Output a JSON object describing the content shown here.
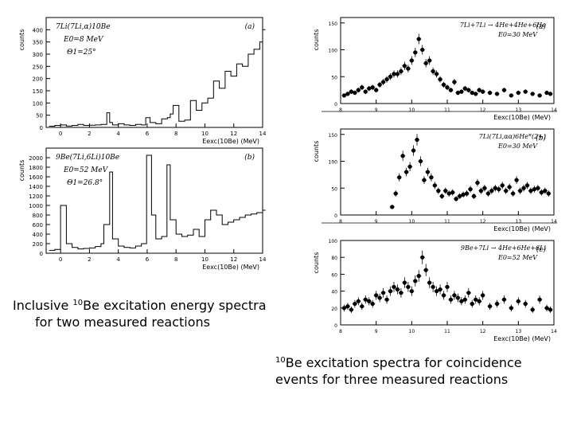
{
  "captions": {
    "left": {
      "sup": "10",
      "line1": "Be excitation energy spectra",
      "prefix": "Inclusive ",
      "line2": "for two measured reactions"
    },
    "right": {
      "sup": "10",
      "line1": "Be excitation spectra for coincidence",
      "line2": "events for three measured reactions"
    }
  },
  "colors": {
    "ink": "#000000",
    "background": "#ffffff"
  },
  "chart_data": [
    {
      "id": "left-a",
      "type": "histogram",
      "panel_label": "(a)",
      "reaction": "7Li(7Li,α)10Be",
      "energy": "E0=8 MeV",
      "angle": "Θ1=25°",
      "ylabel": "counts",
      "xlabel": "Eexc(10Be) (MeV)",
      "xlim": [
        -1,
        14
      ],
      "ylim": [
        0,
        450
      ],
      "yticks": [
        0,
        50,
        100,
        150,
        200,
        250,
        300,
        350,
        400
      ],
      "xticks": [
        0,
        2,
        4,
        6,
        8,
        10,
        12,
        14
      ],
      "x": [
        -0.8,
        -0.4,
        0,
        0.4,
        0.8,
        1.2,
        1.6,
        2,
        2.4,
        2.8,
        3.2,
        3.4,
        3.6,
        4,
        4.4,
        4.8,
        5.2,
        5.6,
        5.9,
        6.2,
        6.6,
        7,
        7.4,
        7.6,
        7.8,
        8.2,
        8.6,
        9,
        9.4,
        9.8,
        10.2,
        10.6,
        11,
        11.4,
        11.8,
        12.2,
        12.6,
        13,
        13.4,
        13.8,
        14
      ],
      "values": [
        5,
        8,
        10,
        6,
        8,
        12,
        8,
        9,
        10,
        12,
        60,
        20,
        10,
        15,
        10,
        8,
        12,
        10,
        40,
        20,
        15,
        35,
        40,
        55,
        90,
        25,
        30,
        110,
        70,
        100,
        120,
        190,
        160,
        230,
        210,
        260,
        250,
        300,
        320,
        350,
        400
      ]
    },
    {
      "id": "left-b",
      "type": "histogram",
      "panel_label": "(b)",
      "reaction": "9Be(7Li,6Li)10Be",
      "energy": "E0=52 MeV",
      "angle": "Θ1=26.8°",
      "ylabel": "counts",
      "xlabel": "Eexc(10Be) (MeV)",
      "xlim": [
        -1,
        14
      ],
      "ylim": [
        0,
        2200
      ],
      "yticks": [
        0,
        200,
        400,
        600,
        800,
        1000,
        1200,
        1400,
        1600,
        1800,
        2000
      ],
      "xticks": [
        0,
        2,
        4,
        6,
        8,
        10,
        12,
        14
      ],
      "x": [
        -0.8,
        -0.4,
        0,
        0.4,
        0.8,
        1.2,
        1.6,
        2,
        2.4,
        2.8,
        3.0,
        3.4,
        3.6,
        4,
        4.4,
        4.8,
        5.2,
        5.6,
        5.96,
        6.3,
        6.6,
        7,
        7.37,
        7.6,
        8,
        8.4,
        8.8,
        9.2,
        9.6,
        10,
        10.4,
        10.8,
        11.2,
        11.6,
        12,
        12.4,
        12.8,
        13.2,
        13.6,
        14
      ],
      "values": [
        60,
        80,
        1000,
        200,
        120,
        90,
        100,
        110,
        140,
        200,
        600,
        1700,
        300,
        150,
        120,
        110,
        150,
        200,
        2050,
        800,
        300,
        350,
        1850,
        700,
        400,
        350,
        380,
        500,
        350,
        700,
        900,
        800,
        600,
        650,
        700,
        750,
        800,
        820,
        850,
        900
      ]
    },
    {
      "id": "right-a",
      "type": "scatter-errorbar",
      "panel_label": "(a)",
      "reaction": "7Li+7Li → 4He+4He+6He",
      "energy": "E0=30 MeV",
      "ylabel": "counts",
      "xlabel": "Eexc(10Be) (MeV)",
      "xlim": [
        8,
        14
      ],
      "ylim": [
        0,
        160
      ],
      "yticks": [
        0,
        50,
        100,
        150
      ],
      "xticks": [
        8,
        9,
        10,
        11,
        12,
        13,
        14
      ],
      "x": [
        8.1,
        8.2,
        8.3,
        8.4,
        8.5,
        8.6,
        8.7,
        8.8,
        8.9,
        9.0,
        9.1,
        9.2,
        9.3,
        9.4,
        9.5,
        9.6,
        9.7,
        9.8,
        9.9,
        10.0,
        10.1,
        10.2,
        10.3,
        10.4,
        10.5,
        10.6,
        10.7,
        10.8,
        10.9,
        11.0,
        11.1,
        11.2,
        11.3,
        11.4,
        11.5,
        11.6,
        11.7,
        11.8,
        11.9,
        12.0,
        12.2,
        12.4,
        12.6,
        12.8,
        13.0,
        13.2,
        13.4,
        13.6,
        13.8,
        13.9
      ],
      "values": [
        15,
        18,
        22,
        20,
        25,
        30,
        22,
        28,
        30,
        25,
        35,
        40,
        45,
        50,
        55,
        55,
        60,
        70,
        65,
        80,
        95,
        120,
        100,
        75,
        80,
        60,
        55,
        45,
        35,
        30,
        25,
        40,
        20,
        22,
        28,
        25,
        20,
        18,
        25,
        22,
        20,
        18,
        25,
        15,
        20,
        22,
        18,
        15,
        20,
        18
      ]
    },
    {
      "id": "right-b",
      "type": "scatter-errorbar",
      "panel_label": "(b)",
      "reaction": "7Li(7Li,αα)6He*(2+)",
      "energy": "E0=30 MeV",
      "ylabel": "counts",
      "xlabel": "Eexc(10Be) (MeV)",
      "xlim": [
        8,
        14
      ],
      "ylim": [
        0,
        160
      ],
      "yticks": [
        0,
        50,
        100,
        150
      ],
      "xticks": [
        8,
        9,
        10,
        11,
        12,
        13,
        14
      ],
      "x": [
        9.45,
        9.55,
        9.65,
        9.75,
        9.85,
        9.95,
        10.05,
        10.15,
        10.25,
        10.35,
        10.45,
        10.55,
        10.65,
        10.75,
        10.85,
        10.95,
        11.05,
        11.15,
        11.25,
        11.35,
        11.45,
        11.55,
        11.65,
        11.75,
        11.85,
        11.95,
        12.05,
        12.15,
        12.25,
        12.35,
        12.45,
        12.55,
        12.65,
        12.75,
        12.85,
        12.95,
        13.05,
        13.15,
        13.25,
        13.35,
        13.45,
        13.55,
        13.65,
        13.75,
        13.85
      ],
      "values": [
        15,
        40,
        70,
        110,
        80,
        90,
        120,
        140,
        100,
        65,
        80,
        70,
        55,
        45,
        35,
        45,
        40,
        42,
        30,
        35,
        38,
        40,
        48,
        35,
        60,
        45,
        50,
        40,
        45,
        50,
        48,
        55,
        45,
        52,
        40,
        65,
        45,
        50,
        55,
        45,
        48,
        50,
        42,
        45,
        40
      ]
    },
    {
      "id": "right-c",
      "type": "scatter-errorbar",
      "panel_label": "(c)",
      "reaction": "9Be+7Li → 4He+6He+6Li",
      "energy": "E0=52 MeV",
      "ylabel": "counts",
      "xlabel": "Eexc(10Be) (MeV)",
      "xlim": [
        8,
        14
      ],
      "ylim": [
        0,
        100
      ],
      "yticks": [
        0,
        20,
        40,
        60,
        80,
        100
      ],
      "xticks": [
        8,
        9,
        10,
        11,
        12,
        13,
        14
      ],
      "x": [
        8.1,
        8.2,
        8.3,
        8.4,
        8.5,
        8.6,
        8.7,
        8.8,
        8.9,
        9.0,
        9.1,
        9.2,
        9.3,
        9.4,
        9.5,
        9.6,
        9.7,
        9.8,
        9.9,
        10.0,
        10.1,
        10.2,
        10.3,
        10.4,
        10.5,
        10.6,
        10.7,
        10.8,
        10.9,
        11.0,
        11.1,
        11.2,
        11.3,
        11.4,
        11.5,
        11.6,
        11.7,
        11.8,
        11.9,
        12.0,
        12.2,
        12.4,
        12.6,
        12.8,
        13.0,
        13.2,
        13.4,
        13.6,
        13.8,
        13.9
      ],
      "values": [
        20,
        22,
        18,
        25,
        28,
        22,
        30,
        28,
        25,
        35,
        32,
        38,
        30,
        40,
        45,
        42,
        38,
        50,
        45,
        40,
        52,
        58,
        80,
        65,
        50,
        45,
        40,
        42,
        35,
        45,
        30,
        35,
        32,
        28,
        30,
        38,
        25,
        30,
        28,
        35,
        22,
        25,
        30,
        20,
        28,
        25,
        18,
        30,
        20,
        18
      ]
    }
  ]
}
